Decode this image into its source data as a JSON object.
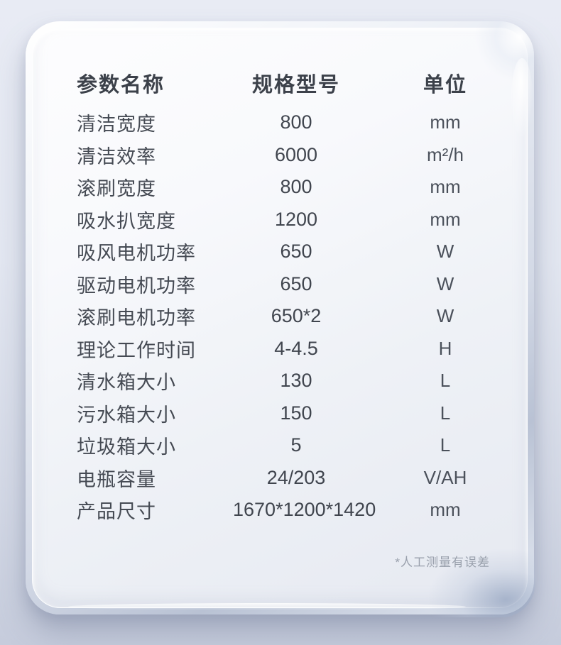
{
  "table": {
    "headers": [
      {
        "label": "参数名称"
      },
      {
        "label": "规格型号"
      },
      {
        "label": "单位"
      }
    ],
    "rows": [
      {
        "name": "清洁宽度",
        "value": "800",
        "unit": "mm"
      },
      {
        "name": "清洁效率",
        "value": "6000",
        "unit": "m²/h"
      },
      {
        "name": "滚刷宽度",
        "value": "800",
        "unit": "mm"
      },
      {
        "name": "吸水扒宽度",
        "value": "1200",
        "unit": "mm"
      },
      {
        "name": "吸风电机功率",
        "value": "650",
        "unit": "W"
      },
      {
        "name": "驱动电机功率",
        "value": "650",
        "unit": "W"
      },
      {
        "name": "滚刷电机功率",
        "value": "650*2",
        "unit": "W"
      },
      {
        "name": "理论工作时间",
        "value": "4-4.5",
        "unit": "H"
      },
      {
        "name": "清水箱大小",
        "value": "130",
        "unit": "L"
      },
      {
        "name": "污水箱大小",
        "value": "150",
        "unit": "L"
      },
      {
        "name": "垃圾箱大小",
        "value": "5",
        "unit": "L"
      },
      {
        "name": "电瓶容量",
        "value": "24/203",
        "unit": "V/AH"
      },
      {
        "name": "产品尺寸",
        "value": "1670*1200*1420",
        "unit": "mm"
      }
    ],
    "footnote": "*人工测量有误差"
  },
  "colors": {
    "background_top": "#e8ebf4",
    "background_bottom": "#c6ccdc",
    "card_surface": "#f6f8fb",
    "text_primary": "#40454e",
    "text_header": "#3c414a",
    "footnote": "#99a0ac"
  }
}
